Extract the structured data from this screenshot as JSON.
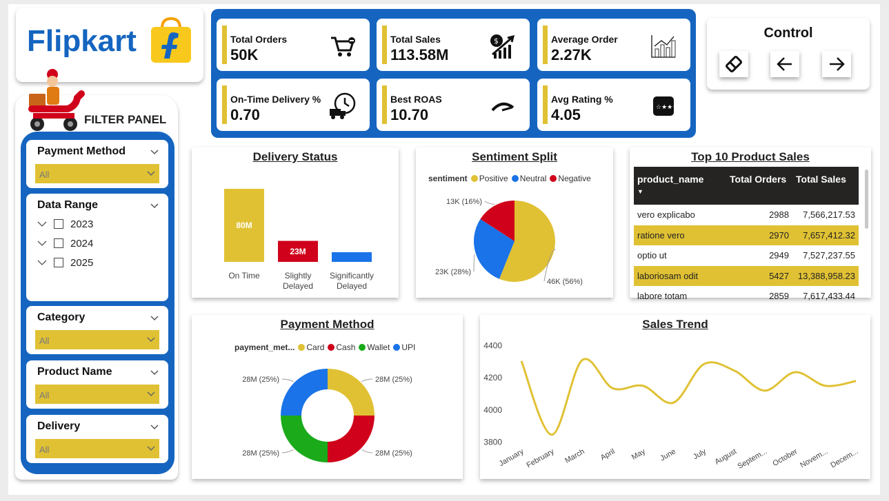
{
  "brand": {
    "logo_text": "Flipkart"
  },
  "kpis": [
    {
      "label": "Total Orders",
      "value": "50K",
      "icon": "cart-icon"
    },
    {
      "label": "Total Sales",
      "value": "113.58M",
      "icon": "money-growth-icon"
    },
    {
      "label": "Average Order",
      "value": "2.27K",
      "icon": "bar-growth-icon"
    },
    {
      "label": "On-Time Delivery %",
      "value": "0.70",
      "icon": "clock-truck-icon"
    },
    {
      "label": "Best ROAS",
      "value": "10.70",
      "icon": "gauge-icon"
    },
    {
      "label": "Avg Rating %",
      "value": "4.05",
      "icon": "rating-stars-icon"
    }
  ],
  "control": {
    "title": "Control",
    "buttons": [
      "eraser-icon",
      "back-arrow-icon",
      "forward-arrow-icon"
    ]
  },
  "filter_panel": {
    "title": "FILTER PANEL",
    "payment_method": {
      "title": "Payment Method",
      "value": "All"
    },
    "date_range": {
      "title": "Data Range",
      "years": [
        "2023",
        "2024",
        "2025"
      ]
    },
    "category": {
      "title": "Category",
      "value": "All"
    },
    "product_name": {
      "title": "Product Name",
      "value": "All"
    },
    "delivery": {
      "title": "Delivery",
      "value": "All"
    }
  },
  "delivery_status": {
    "title": "Delivery Status",
    "chart_data": {
      "type": "bar",
      "categories": [
        "On Time",
        "Slightly Delayed",
        "Significantly Delayed"
      ],
      "values": [
        80,
        23,
        7
      ],
      "labels": [
        "80M",
        "23M",
        ""
      ],
      "colors": [
        "#e0c134",
        "#d0021b",
        "#1a73e8"
      ]
    }
  },
  "sentiment_split": {
    "title": "Sentiment Split",
    "legend_title": "sentiment",
    "chart_data": {
      "type": "pie",
      "series": [
        {
          "name": "Positive",
          "value": 46,
          "label": "46K (56%)",
          "color": "#e0c134"
        },
        {
          "name": "Neutral",
          "value": 23,
          "label": "23K (28%)",
          "color": "#1a73e8"
        },
        {
          "name": "Negative",
          "value": 13,
          "label": "13K (16%)",
          "color": "#d0021b"
        }
      ]
    }
  },
  "top_products": {
    "title": "Top 10 Product Sales",
    "columns": [
      "product_name",
      "Total Orders",
      "Total Sales"
    ],
    "rows": [
      [
        "vero explicabo",
        "2988",
        "7,566,217.53"
      ],
      [
        "ratione vero",
        "2970",
        "7,657,412.32"
      ],
      [
        "optio ut",
        "2949",
        "7,527,237.55"
      ],
      [
        "laboriosam odit",
        "5427",
        "13,388,958.23"
      ],
      [
        "labore totam",
        "2859",
        "7,617,433.44"
      ]
    ]
  },
  "payment_method_chart": {
    "title": "Payment Method",
    "legend_title": "payment_met...",
    "chart_data": {
      "type": "pie",
      "series": [
        {
          "name": "Card",
          "value": 28,
          "label": "28M (25%)",
          "color": "#e0c134"
        },
        {
          "name": "Cash",
          "value": 28,
          "label": "28M (25%)",
          "color": "#d0021b"
        },
        {
          "name": "Wallet",
          "value": 28,
          "label": "28M (25%)",
          "color": "#1aaa1a"
        },
        {
          "name": "UPI",
          "value": 28,
          "label": "28M (25%)",
          "color": "#1a73e8"
        }
      ]
    }
  },
  "sales_trend": {
    "title": "Sales Trend",
    "chart_data": {
      "type": "line",
      "x": [
        "January",
        "February",
        "March",
        "April",
        "May",
        "June",
        "July",
        "August",
        "Septem...",
        "October",
        "Novem...",
        "Decem..."
      ],
      "y": [
        4305,
        3845,
        4310,
        4135,
        4150,
        4045,
        4285,
        4245,
        4120,
        4235,
        4150,
        4180
      ],
      "ylim": [
        3780,
        4420
      ],
      "yticks": [
        3800,
        4000,
        4200,
        4400
      ],
      "color": "#e0c134"
    }
  }
}
